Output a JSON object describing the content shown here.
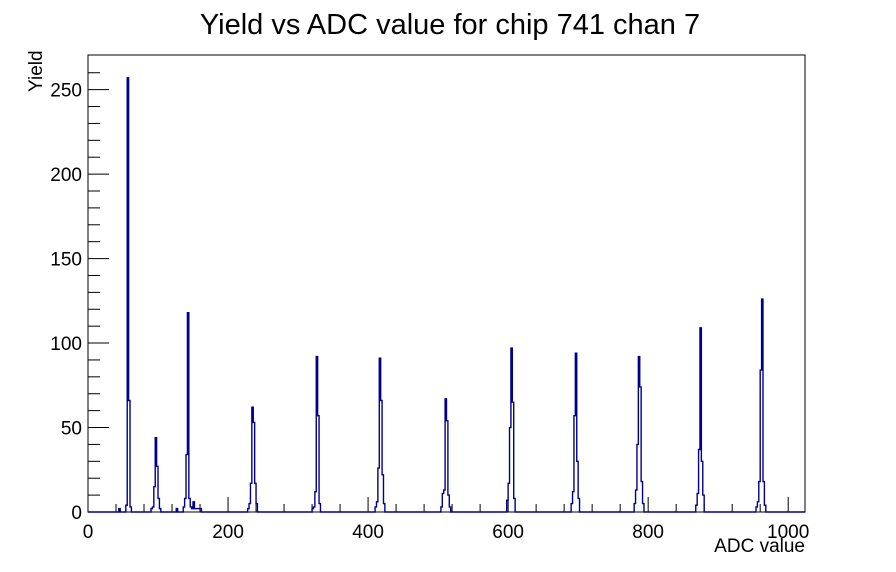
{
  "title": "Yield vs ADC value for chip 741 chan 7",
  "colors": {
    "background": "#ffffff",
    "axis": "#000000",
    "text": "#000000",
    "histogram_line": "#00008b"
  },
  "chart_data": {
    "type": "bar",
    "subtype": "root-histogram-outline",
    "title": "Yield vs ADC value for chip 741 chan 7",
    "xlabel": "ADC value",
    "ylabel": "Yield",
    "xlim": [
      0,
      1024
    ],
    "ylim": [
      0,
      270.5
    ],
    "grid": false,
    "legend": false,
    "x_major_ticks": [
      0,
      200,
      400,
      600,
      800,
      1000
    ],
    "x_minor_step": 40,
    "y_major_ticks": [
      0,
      50,
      100,
      150,
      200,
      250
    ],
    "y_minor_step": 10,
    "line_color": "#00008b",
    "peaks": [
      {
        "adc": 57,
        "yield": 257
      },
      {
        "adc": 97,
        "yield": 44
      },
      {
        "adc": 143,
        "yield": 118
      },
      {
        "adc": 235,
        "yield": 62
      },
      {
        "adc": 327,
        "yield": 92
      },
      {
        "adc": 417,
        "yield": 91
      },
      {
        "adc": 511,
        "yield": 67
      },
      {
        "adc": 605,
        "yield": 97
      },
      {
        "adc": 697,
        "yield": 94
      },
      {
        "adc": 787,
        "yield": 92
      },
      {
        "adc": 875,
        "yield": 109
      },
      {
        "adc": 963,
        "yield": 126
      }
    ],
    "bins": [
      [
        44,
        46,
        2
      ],
      [
        54,
        56,
        4
      ],
      [
        56,
        58,
        257
      ],
      [
        58,
        60,
        66
      ],
      [
        60,
        62,
        3
      ],
      [
        90,
        92,
        2
      ],
      [
        92,
        94,
        3
      ],
      [
        94,
        96,
        15
      ],
      [
        96,
        98,
        44
      ],
      [
        98,
        100,
        27
      ],
      [
        100,
        102,
        8
      ],
      [
        102,
        104,
        2
      ],
      [
        126,
        128,
        2
      ],
      [
        136,
        138,
        3
      ],
      [
        138,
        140,
        8
      ],
      [
        140,
        142,
        34
      ],
      [
        142,
        144,
        118
      ],
      [
        144,
        146,
        8
      ],
      [
        146,
        148,
        3
      ],
      [
        148,
        150,
        2
      ],
      [
        150,
        152,
        6
      ],
      [
        152,
        162,
        2
      ],
      [
        228,
        230,
        2
      ],
      [
        230,
        232,
        5
      ],
      [
        232,
        234,
        17
      ],
      [
        234,
        236,
        62
      ],
      [
        236,
        238,
        53
      ],
      [
        238,
        240,
        17
      ],
      [
        240,
        242,
        5
      ],
      [
        320,
        322,
        2
      ],
      [
        322,
        324,
        3
      ],
      [
        324,
        326,
        12
      ],
      [
        326,
        328,
        92
      ],
      [
        328,
        330,
        57
      ],
      [
        330,
        332,
        5
      ],
      [
        410,
        412,
        3
      ],
      [
        412,
        414,
        6
      ],
      [
        414,
        416,
        26
      ],
      [
        416,
        418,
        91
      ],
      [
        418,
        420,
        66
      ],
      [
        420,
        422,
        22
      ],
      [
        422,
        424,
        5
      ],
      [
        504,
        506,
        3
      ],
      [
        506,
        508,
        11
      ],
      [
        508,
        510,
        13
      ],
      [
        510,
        512,
        67
      ],
      [
        512,
        514,
        54
      ],
      [
        514,
        516,
        10
      ],
      [
        516,
        518,
        3
      ],
      [
        598,
        600,
        7
      ],
      [
        600,
        602,
        17
      ],
      [
        602,
        604,
        50
      ],
      [
        604,
        606,
        97
      ],
      [
        606,
        608,
        65
      ],
      [
        608,
        610,
        8
      ],
      [
        690,
        692,
        5
      ],
      [
        692,
        694,
        12
      ],
      [
        694,
        696,
        57
      ],
      [
        696,
        698,
        94
      ],
      [
        698,
        700,
        30
      ],
      [
        700,
        702,
        8
      ],
      [
        780,
        782,
        5
      ],
      [
        782,
        784,
        13
      ],
      [
        784,
        786,
        40
      ],
      [
        786,
        788,
        92
      ],
      [
        788,
        790,
        74
      ],
      [
        790,
        792,
        18
      ],
      [
        792,
        794,
        5
      ],
      [
        868,
        870,
        4
      ],
      [
        870,
        872,
        11
      ],
      [
        872,
        874,
        37
      ],
      [
        874,
        876,
        109
      ],
      [
        876,
        878,
        30
      ],
      [
        878,
        880,
        10
      ],
      [
        954,
        956,
        3
      ],
      [
        956,
        958,
        6
      ],
      [
        958,
        960,
        18
      ],
      [
        960,
        962,
        84
      ],
      [
        962,
        964,
        126
      ],
      [
        964,
        966,
        18
      ],
      [
        966,
        968,
        4
      ]
    ]
  }
}
